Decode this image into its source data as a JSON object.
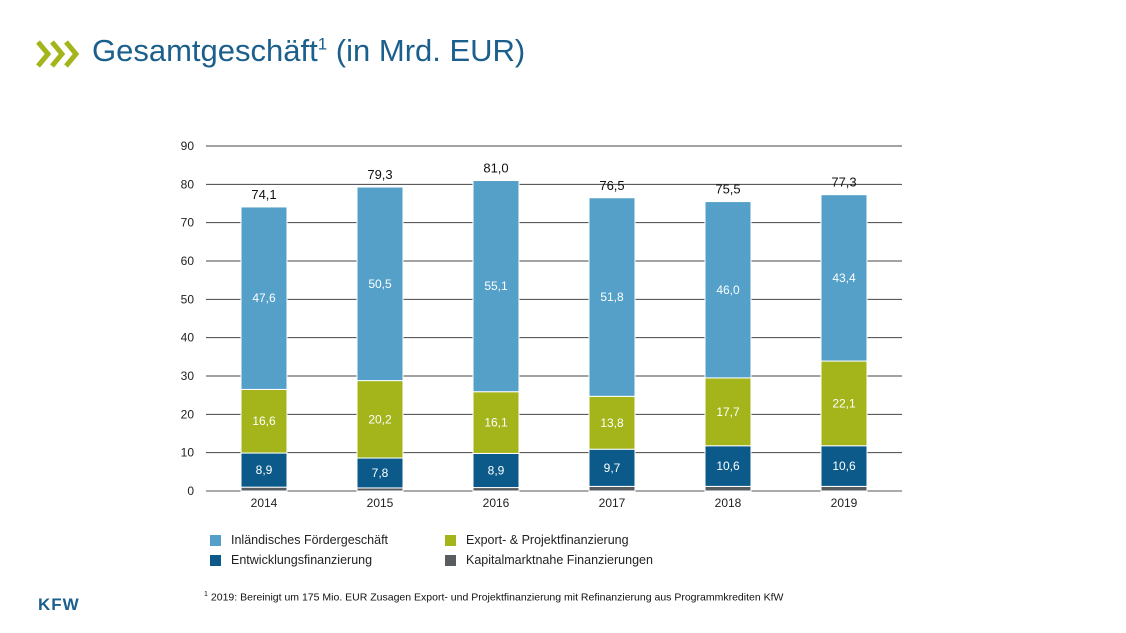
{
  "header": {
    "title": "Gesamtgeschäft",
    "title_sup": "1",
    "title_suffix": " (in Mrd. EUR)"
  },
  "chart_data": {
    "type": "bar",
    "stacked": true,
    "categories": [
      "2014",
      "2015",
      "2016",
      "2017",
      "2018",
      "2019"
    ],
    "totals": [
      "74,1",
      "79,3",
      "81,0",
      "76,5",
      "75,5",
      "77,3"
    ],
    "total_values": [
      74.1,
      79.3,
      81.0,
      76.5,
      75.5,
      77.3
    ],
    "ylim": [
      0,
      90
    ],
    "yticks": [
      0,
      10,
      20,
      30,
      40,
      50,
      60,
      70,
      80,
      90
    ],
    "grid": true,
    "series": [
      {
        "name": "Kapitalmarktnahe Finanzierungen",
        "color": "#5a5d60",
        "values": [
          1.0,
          0.8,
          0.9,
          1.2,
          1.2,
          1.2
        ],
        "labels": [
          "",
          "",
          "",
          "",
          "",
          ""
        ]
      },
      {
        "name": "Entwicklungsfinanzierung",
        "color": "#0b5a8a",
        "values": [
          8.9,
          7.8,
          8.9,
          9.7,
          10.6,
          10.6
        ],
        "labels": [
          "8,9",
          "7,8",
          "8,9",
          "9,7",
          "10,6",
          "10,6"
        ]
      },
      {
        "name": "Export- & Projektfinanzierung",
        "color": "#a4b51c",
        "values": [
          16.6,
          20.2,
          16.1,
          13.8,
          17.7,
          22.1
        ],
        "labels": [
          "16,6",
          "20,2",
          "16,1",
          "13,8",
          "17,7",
          "22,1"
        ]
      },
      {
        "name": "Inländisches Fördergeschäft",
        "color": "#54a0c9",
        "values": [
          47.6,
          50.5,
          55.1,
          51.8,
          46.0,
          43.4
        ],
        "labels": [
          "47,6",
          "50,5",
          "55,1",
          "51,8",
          "46,0",
          "43,4"
        ]
      }
    ]
  },
  "legend": [
    {
      "label": "Inländisches Fördergeschäft",
      "color": "#54a0c9"
    },
    {
      "label": "Export- & Projektfinanzierung",
      "color": "#a4b51c"
    },
    {
      "label": "Entwicklungsfinanzierung",
      "color": "#0b5a8a"
    },
    {
      "label": "Kapitalmarktnahe Finanzierungen",
      "color": "#5a5d60"
    }
  ],
  "footnote": {
    "marker": "1",
    "text": "2019: Bereinigt um 175 Mio. EUR Zusagen Export- und Projektfinanzierung mit Refinanzierung aus Programmkrediten KfW"
  },
  "brand": {
    "logo_text": "KFW",
    "title_color": "#1b5f8c",
    "chevron_color": "#a4b51c"
  }
}
